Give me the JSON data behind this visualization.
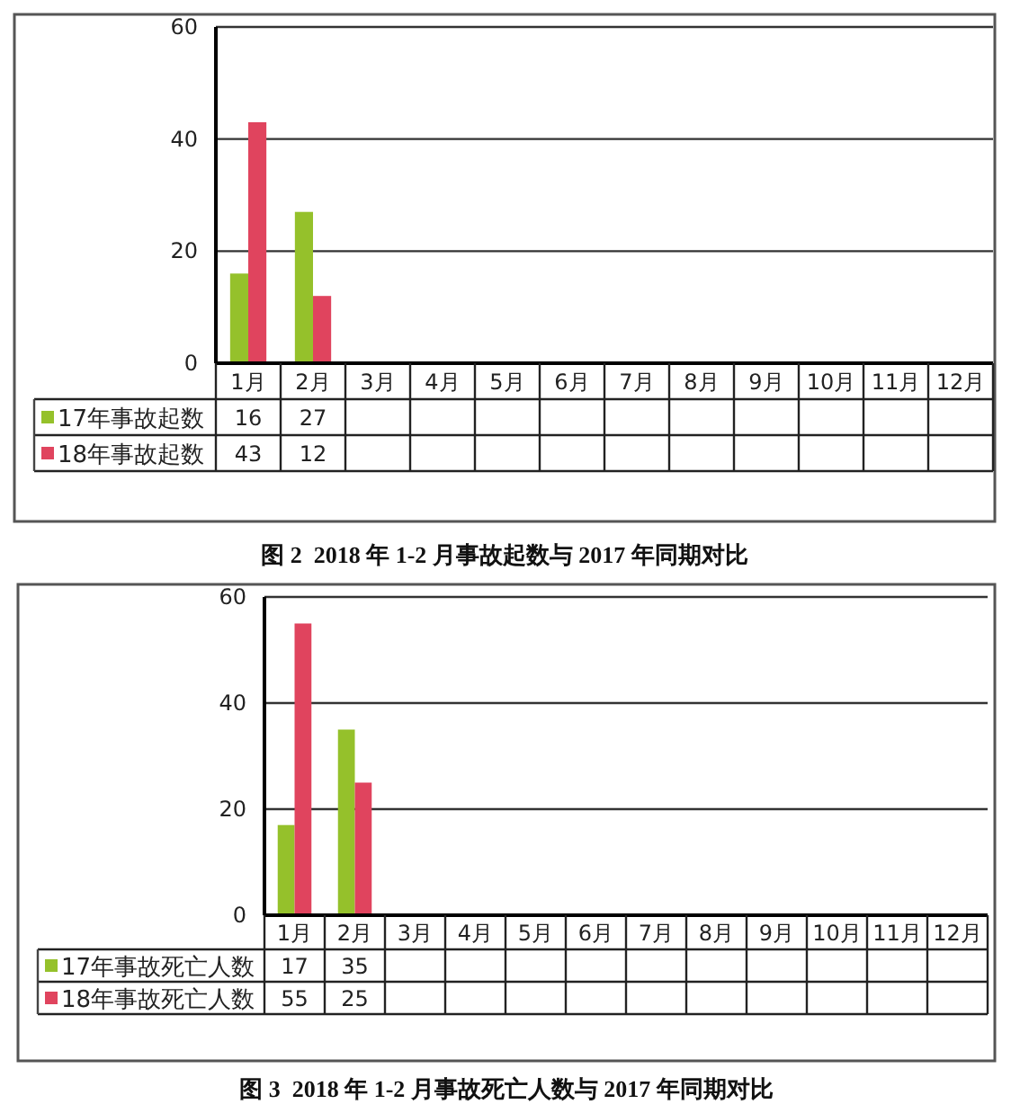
{
  "chart_data": [
    {
      "type": "bar",
      "title": "图 2  2018 年 1-2 月事故起数与 2017 年同期对比",
      "categories": [
        "1月",
        "2月",
        "3月",
        "4月",
        "5月",
        "6月",
        "7月",
        "8月",
        "9月",
        "10月",
        "11月",
        "12月"
      ],
      "series": [
        {
          "name": "17年事故起数",
          "color": "#95c12b",
          "values": [
            16,
            27,
            null,
            null,
            null,
            null,
            null,
            null,
            null,
            null,
            null,
            null
          ]
        },
        {
          "name": "18年事故起数",
          "color": "#e0445e",
          "values": [
            43,
            12,
            null,
            null,
            null,
            null,
            null,
            null,
            null,
            null,
            null,
            null
          ]
        }
      ],
      "ylim": [
        0,
        60
      ],
      "yticks": [
        0,
        20,
        40,
        60
      ],
      "grid": "y",
      "legend": "bottom",
      "data_labels": true
    },
    {
      "type": "bar",
      "title": "图 3  2018 年 1-2 月事故死亡人数与 2017 年同期对比",
      "categories": [
        "1月",
        "2月",
        "3月",
        "4月",
        "5月",
        "6月",
        "7月",
        "8月",
        "9月",
        "10月",
        "11月",
        "12月"
      ],
      "series": [
        {
          "name": "17年事故死亡人数",
          "color": "#95c12b",
          "values": [
            17,
            35,
            null,
            null,
            null,
            null,
            null,
            null,
            null,
            null,
            null,
            null
          ]
        },
        {
          "name": "18年事故死亡人数",
          "color": "#e0445e",
          "values": [
            55,
            25,
            null,
            null,
            null,
            null,
            null,
            null,
            null,
            null,
            null,
            null
          ]
        }
      ],
      "ylim": [
        0,
        60
      ],
      "yticks": [
        0,
        20,
        40,
        60
      ],
      "grid": "y",
      "legend": "bottom",
      "data_labels": true
    }
  ]
}
